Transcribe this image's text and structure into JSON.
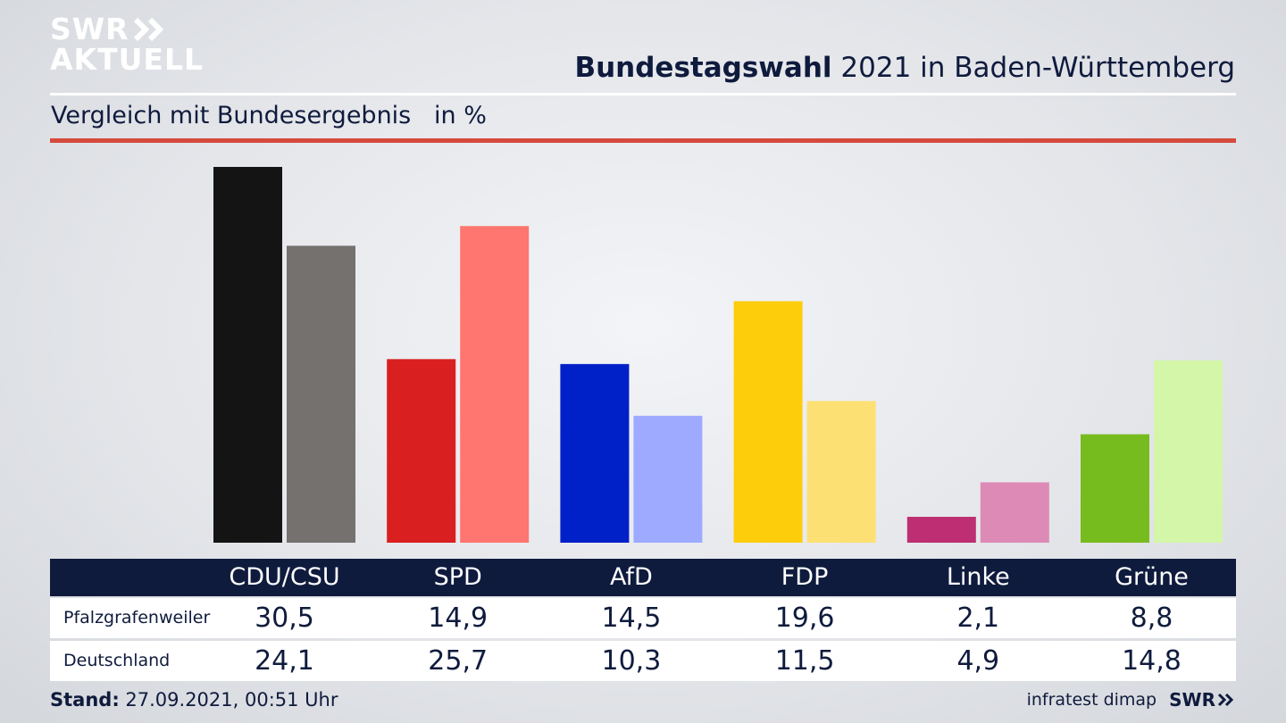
{
  "logo": {
    "line1": "SWR",
    "line2": "AKTUELL"
  },
  "header": {
    "title_bold": "Bundestagswahl",
    "title_rest": " 2021 in Baden-Württemberg",
    "subtitle": "Vergleich mit Bundesergebnis   in %"
  },
  "table": {
    "rows": [
      {
        "label": "Pfalzgrafenweiler",
        "values": [
          "30,5",
          "14,9",
          "14,5",
          "19,6",
          "2,1",
          "8,8"
        ]
      },
      {
        "label": "Deutschland",
        "values": [
          "24,1",
          "25,7",
          "10,3",
          "11,5",
          "4,9",
          "14,8"
        ]
      }
    ]
  },
  "footer": {
    "stand_label": "Stand:",
    "stand_value": " 27.09.2021, 00:51 Uhr",
    "source": "infratest dimap",
    "brand": "SWR"
  },
  "colors": {
    "accent_red": "#d54a3c",
    "navy": "#0f1b3d"
  },
  "chart_data": {
    "type": "bar",
    "categories": [
      "CDU/CSU",
      "SPD",
      "AfD",
      "FDP",
      "Linke",
      "Grüne"
    ],
    "series": [
      {
        "name": "Pfalzgrafenweiler",
        "values": [
          30.5,
          14.9,
          14.5,
          19.6,
          2.1,
          8.8
        ],
        "colors": [
          "#141414",
          "#d91f1f",
          "#0020c8",
          "#fdcc0b",
          "#be2e72",
          "#77bc1f"
        ]
      },
      {
        "name": "Deutschland",
        "values": [
          24.1,
          25.7,
          10.3,
          11.5,
          4.9,
          14.8
        ],
        "colors": [
          "#74716f",
          "#ff756f",
          "#9eaaff",
          "#fde073",
          "#de8ab6",
          "#d3f6a8"
        ]
      }
    ],
    "title": "Bundestagswahl 2021 in Baden-Württemberg",
    "subtitle": "Vergleich mit Bundesergebnis   in %",
    "ylim": [
      0,
      30.5
    ]
  }
}
